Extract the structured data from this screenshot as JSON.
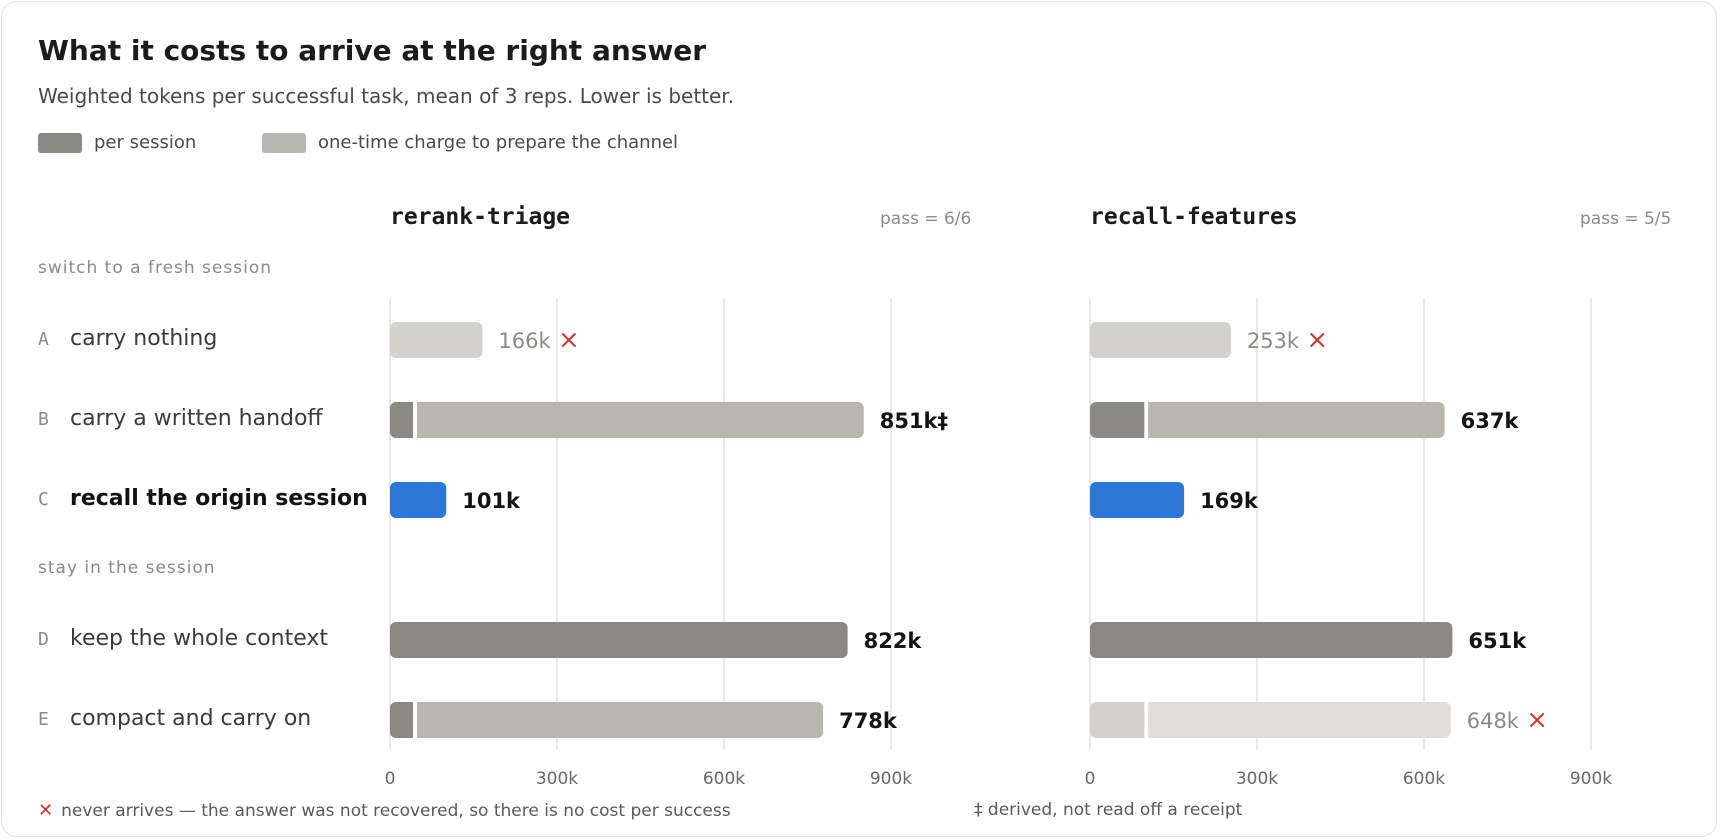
{
  "title": "What it costs to arrive at the right answer",
  "subtitle": "Weighted tokens per successful task, mean of 3 reps. Lower is better.",
  "legend": {
    "per_session": "per session",
    "one_time": "one-time charge to prepare the channel"
  },
  "colors": {
    "per_session": "#8a8984",
    "one_time": "#b8b6ae",
    "faded": "#d2d1cd",
    "faded_light": "#e0dfdb",
    "highlight": "#2b78d6",
    "grid": "#e4e3dd",
    "fail": "#d2342c"
  },
  "groups": {
    "fresh": "switch to a fresh session",
    "stay": "stay in the session"
  },
  "rows": [
    {
      "letter": "A",
      "label": "carry nothing"
    },
    {
      "letter": "B",
      "label": "carry a written handoff"
    },
    {
      "letter": "C",
      "label": "recall the origin session"
    },
    {
      "letter": "D",
      "label": "keep the whole context"
    },
    {
      "letter": "E",
      "label": "compact and carry on"
    }
  ],
  "footnotes": {
    "never_arrives": "never arrives — the answer was not recovered, so there is no cost per success",
    "derived": "‡ derived, not read off a receipt"
  },
  "chart_data": [
    {
      "type": "bar",
      "title": "rerank-triage",
      "pass": "pass = 6/6",
      "xlim": [
        0,
        1000000
      ],
      "ticks": [
        0,
        300000,
        600000,
        900000
      ],
      "tick_labels": [
        "0",
        "300k",
        "600k",
        "900k"
      ],
      "bars": [
        {
          "row": "A",
          "per_session": 0,
          "one_time": 166000,
          "label": "166k",
          "never_arrives": true
        },
        {
          "row": "B",
          "per_session": 45000,
          "one_time": 806000,
          "label": "851k‡",
          "never_arrives": false
        },
        {
          "row": "C",
          "per_session": 101000,
          "one_time": 0,
          "label": "101k",
          "never_arrives": false
        },
        {
          "row": "D",
          "per_session": 822000,
          "one_time": 0,
          "label": "822k",
          "never_arrives": false
        },
        {
          "row": "E",
          "per_session": 45000,
          "one_time": 733000,
          "label": "778k",
          "never_arrives": false
        }
      ]
    },
    {
      "type": "bar",
      "title": "recall-features",
      "pass": "pass = 5/5",
      "xlim": [
        0,
        1000000
      ],
      "ticks": [
        0,
        300000,
        600000,
        900000
      ],
      "tick_labels": [
        "0",
        "300k",
        "600k",
        "900k"
      ],
      "bars": [
        {
          "row": "A",
          "per_session": 0,
          "one_time": 253000,
          "label": "253k",
          "never_arrives": true
        },
        {
          "row": "B",
          "per_session": 101000,
          "one_time": 536000,
          "label": "637k",
          "never_arrives": false
        },
        {
          "row": "C",
          "per_session": 169000,
          "one_time": 0,
          "label": "169k",
          "never_arrives": false
        },
        {
          "row": "D",
          "per_session": 651000,
          "one_time": 0,
          "label": "651k",
          "never_arrives": false
        },
        {
          "row": "E",
          "per_session": 101000,
          "one_time": 547000,
          "label": "648k",
          "never_arrives": true
        }
      ]
    }
  ]
}
